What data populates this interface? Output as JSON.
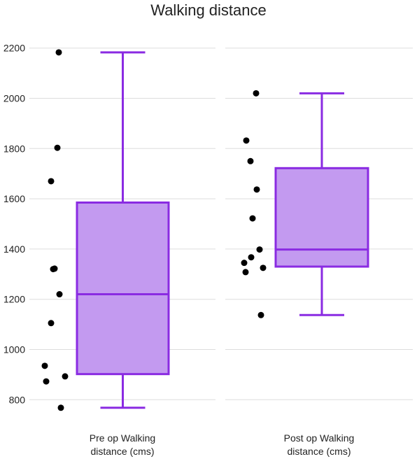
{
  "chart_data": {
    "type": "box",
    "title": "Walking distance",
    "xlabel": "",
    "ylabel": "",
    "ylim": [
      720,
      2280
    ],
    "yticks": [
      800,
      1000,
      1200,
      1400,
      1600,
      1800,
      2000,
      2200
    ],
    "grid": true,
    "colors": {
      "box_fill": "#c39af0",
      "box_stroke": "#8a2be2",
      "point": "#000000",
      "grid": "#dddddd"
    },
    "categories": [
      {
        "label_lines": [
          "Pre op Walking",
          "distance (cms)"
        ]
      },
      {
        "label_lines": [
          "Post op Walking",
          "distance (cms)"
        ]
      }
    ],
    "series": [
      {
        "stats": {
          "min": 768,
          "q1": 902,
          "median": 1220,
          "q3": 1585,
          "max": 2183
        },
        "points": [
          2183,
          1803,
          1670,
          1322,
          1320,
          1220,
          1105,
          935,
          893,
          873,
          768
        ]
      },
      {
        "stats": {
          "min": 1137,
          "q1": 1330,
          "median": 1398,
          "q3": 1722,
          "max": 2020
        },
        "points": [
          2020,
          1832,
          1750,
          1637,
          1522,
          1398,
          1367,
          1345,
          1325,
          1308,
          1137
        ]
      }
    ]
  }
}
